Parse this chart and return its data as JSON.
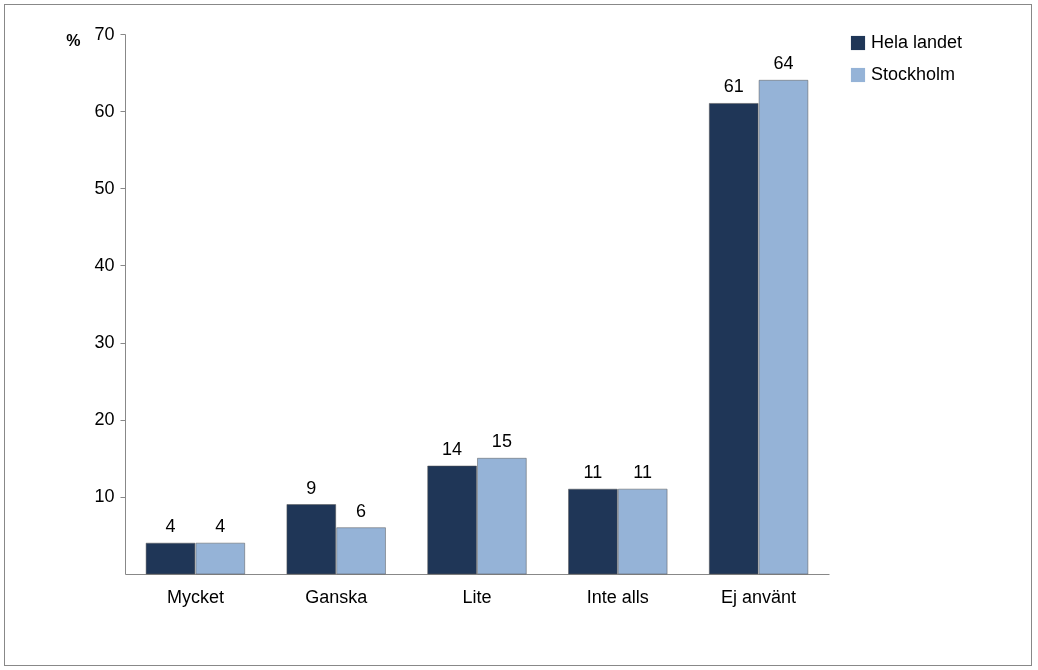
{
  "chart_data": {
    "type": "bar",
    "ylabel": "%",
    "categories": [
      "Mycket",
      "Ganska",
      "Lite",
      "Inte alls",
      "Ej använt"
    ],
    "series": [
      {
        "name": "Hela landet",
        "color": "#1f3657",
        "values": [
          4,
          9,
          14,
          11,
          61
        ]
      },
      {
        "name": "Stockholm",
        "color": "#95b3d7",
        "values": [
          4,
          6,
          15,
          11,
          64
        ]
      }
    ],
    "ylim": [
      0,
      70
    ],
    "yticks": [
      10,
      20,
      30,
      40,
      50,
      60,
      70
    ],
    "data_labels": true,
    "legend": "right",
    "grid": false
  }
}
